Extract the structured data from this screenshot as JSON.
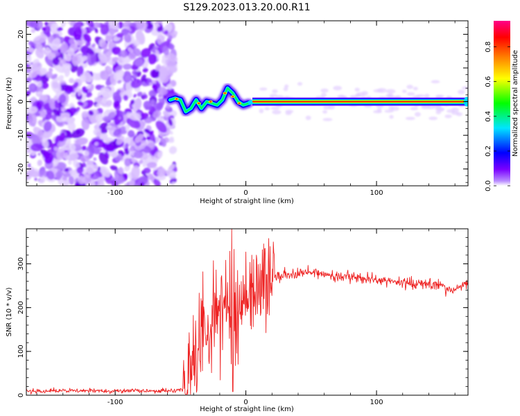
{
  "title": "S129.2023.013.20.00.R11",
  "chart_data": [
    {
      "type": "heatmap",
      "xlabel": "Height of straight line (km)",
      "ylabel": "Frequency (Hz)",
      "xlim": [
        -168,
        170
      ],
      "ylim": [
        -25,
        24
      ],
      "x_ticks": [
        -100,
        0,
        100
      ],
      "y_ticks": [
        -20,
        -10,
        0,
        10,
        20
      ],
      "colorbar": {
        "label": "Normalized spectral amplitude",
        "range": [
          0,
          0.95
        ],
        "ticks": [
          0.0,
          0.2,
          0.4,
          0.6,
          0.8
        ],
        "colormap": [
          "#ffffff",
          "#7a00ff",
          "#0000ff",
          "#00e5ff",
          "#00ff00",
          "#ffff00",
          "#ff7f00",
          "#ff0000",
          "#ff0088"
        ]
      },
      "features": {
        "noise_region_x": [
          -168,
          -58
        ],
        "wandering_segment": {
          "x": [
            -58,
            -54,
            -50,
            -46,
            -42,
            -38,
            -34,
            -30,
            -26,
            -22,
            -18,
            -14,
            -10,
            -6,
            -2,
            2
          ],
          "y": [
            0.5,
            1.0,
            0.5,
            -3.0,
            -2.0,
            0.5,
            -2.0,
            0.0,
            -0.5,
            -1.0,
            0.5,
            4.0,
            2.5,
            0.0,
            -1.0,
            -0.5
          ]
        },
        "stable_line": {
          "x_range": [
            5,
            170
          ],
          "frequency": 0
        }
      }
    },
    {
      "type": "line",
      "xlabel": "Height of straight line (km)",
      "ylabel": "SNR (10 * v/v)",
      "xlim": [
        -168,
        170
      ],
      "ylim": [
        0,
        380
      ],
      "x_ticks": [
        -100,
        0,
        100
      ],
      "y_ticks": [
        0,
        100,
        200,
        300
      ],
      "line_color": "#ee2222",
      "envelope": {
        "x": [
          -168,
          -60,
          -45,
          -40,
          -30,
          -20,
          -10,
          0,
          10,
          20,
          30,
          50,
          80,
          100,
          120,
          150,
          158,
          162,
          170
        ],
        "y": [
          10,
          10,
          12,
          90,
          150,
          200,
          190,
          230,
          240,
          270,
          275,
          280,
          270,
          262,
          258,
          250,
          235,
          245,
          258
        ]
      },
      "spikes": [
        {
          "x": -33,
          "y": 282
        },
        {
          "x": -19,
          "y": 268
        },
        {
          "x": -11,
          "y": 380
        },
        {
          "x": -10,
          "y": 8
        },
        {
          "x": 6,
          "y": 310
        },
        {
          "x": 8,
          "y": 320
        },
        {
          "x": 15,
          "y": 300
        }
      ]
    }
  ]
}
